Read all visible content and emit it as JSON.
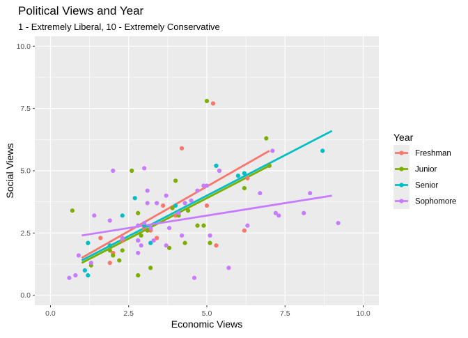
{
  "chart_data": {
    "type": "scatter",
    "title": "Political Views and Year",
    "subtitle": "1 - Extremely Liberal, 10 - Extremely Conservative",
    "xlabel": "Economic Views",
    "ylabel": "Social Views",
    "xlim": [
      -0.5,
      10.5
    ],
    "ylim": [
      -0.4,
      10.4
    ],
    "x_ticks": [
      0,
      2.5,
      5,
      7.5,
      10
    ],
    "x_tick_labels": [
      "0.0",
      "2.5",
      "5.0",
      "7.5",
      "10.0"
    ],
    "y_ticks": [
      0,
      2.5,
      5,
      7.5,
      10
    ],
    "y_tick_labels": [
      "0.0",
      "2.5",
      "5.0",
      "7.5",
      "10.0"
    ],
    "grid": true,
    "legend_title": "Year",
    "legend_position": "right",
    "series": [
      {
        "name": "Freshman",
        "color": "#F8766D",
        "points": [
          [
            1.6,
            2.3
          ],
          [
            1.9,
            1.3
          ],
          [
            2.0,
            1.7
          ],
          [
            2.3,
            2.2
          ],
          [
            3.0,
            2.7
          ],
          [
            3.2,
            2.6
          ],
          [
            3.4,
            2.3
          ],
          [
            3.6,
            3.6
          ],
          [
            4.0,
            3.2
          ],
          [
            4.2,
            5.9
          ],
          [
            5.0,
            3.6
          ],
          [
            5.2,
            7.7
          ],
          [
            5.3,
            5.2
          ],
          [
            5.3,
            2.0
          ],
          [
            5.4,
            5.0
          ],
          [
            6.2,
            2.6
          ],
          [
            6.3,
            4.7
          ],
          [
            7.0,
            5.2
          ]
        ],
        "fit": [
          [
            1.0,
            1.5
          ],
          [
            7.0,
            5.8
          ]
        ]
      },
      {
        "name": "Junior",
        "color": "#7CAE00",
        "points": [
          [
            0.7,
            3.4
          ],
          [
            1.3,
            1.2
          ],
          [
            1.9,
            1.8
          ],
          [
            2.0,
            1.6
          ],
          [
            2.2,
            1.4
          ],
          [
            2.3,
            1.8
          ],
          [
            2.6,
            5.0
          ],
          [
            2.8,
            0.8
          ],
          [
            2.8,
            3.3
          ],
          [
            2.9,
            2.4
          ],
          [
            3.1,
            2.6
          ],
          [
            3.2,
            1.1
          ],
          [
            3.8,
            1.9
          ],
          [
            3.9,
            3.5
          ],
          [
            4.0,
            4.6
          ],
          [
            4.1,
            3.2
          ],
          [
            4.3,
            2.1
          ],
          [
            4.4,
            3.4
          ],
          [
            4.7,
            2.8
          ],
          [
            4.9,
            2.8
          ],
          [
            5.0,
            7.8
          ],
          [
            5.1,
            2.1
          ],
          [
            6.2,
            4.3
          ],
          [
            6.9,
            6.3
          ],
          [
            7.0,
            5.2
          ]
        ],
        "fit": [
          [
            1.0,
            1.3
          ],
          [
            7.0,
            5.2
          ]
        ]
      },
      {
        "name": "Senior",
        "color": "#00BFC4",
        "points": [
          [
            1.1,
            1.0
          ],
          [
            1.2,
            2.1
          ],
          [
            1.2,
            0.8
          ],
          [
            1.9,
            2.0
          ],
          [
            2.3,
            3.2
          ],
          [
            2.7,
            3.9
          ],
          [
            2.8,
            2.2
          ],
          [
            3.0,
            2.8
          ],
          [
            3.2,
            2.1
          ],
          [
            4.0,
            3.6
          ],
          [
            5.3,
            5.2
          ],
          [
            6.0,
            4.8
          ],
          [
            6.2,
            4.9
          ],
          [
            8.7,
            5.8
          ]
        ],
        "fit": [
          [
            1.0,
            1.4
          ],
          [
            9.0,
            6.6
          ]
        ]
      },
      {
        "name": "Sophomore",
        "color": "#C77CFF",
        "points": [
          [
            0.6,
            0.7
          ],
          [
            0.8,
            0.8
          ],
          [
            0.9,
            1.6
          ],
          [
            1.3,
            1.3
          ],
          [
            1.4,
            3.2
          ],
          [
            1.9,
            3.0
          ],
          [
            2.0,
            5.0
          ],
          [
            2.3,
            2.3
          ],
          [
            2.8,
            2.8
          ],
          [
            2.8,
            2.2
          ],
          [
            2.8,
            1.7
          ],
          [
            2.9,
            2.0
          ],
          [
            3.0,
            5.1
          ],
          [
            3.1,
            4.2
          ],
          [
            3.1,
            3.7
          ],
          [
            3.2,
            2.7
          ],
          [
            3.3,
            2.2
          ],
          [
            3.4,
            3.7
          ],
          [
            3.7,
            4.0
          ],
          [
            3.7,
            2.0
          ],
          [
            3.8,
            2.7
          ],
          [
            4.1,
            3.3
          ],
          [
            4.3,
            3.7
          ],
          [
            4.5,
            3.8
          ],
          [
            4.6,
            0.7
          ],
          [
            4.7,
            4.2
          ],
          [
            4.9,
            4.4
          ],
          [
            5.0,
            4.4
          ],
          [
            5.1,
            2.4
          ],
          [
            5.4,
            5.0
          ],
          [
            5.7,
            1.1
          ],
          [
            6.3,
            2.8
          ],
          [
            6.7,
            4.1
          ],
          [
            7.1,
            5.8
          ],
          [
            7.2,
            3.3
          ],
          [
            7.3,
            3.2
          ],
          [
            8.1,
            3.3
          ],
          [
            8.3,
            4.1
          ],
          [
            9.2,
            2.9
          ],
          [
            4.2,
            2.4
          ],
          [
            3.0,
            2.9
          ]
        ],
        "fit": [
          [
            1.0,
            2.4
          ],
          [
            9.0,
            4.0
          ]
        ]
      }
    ]
  }
}
